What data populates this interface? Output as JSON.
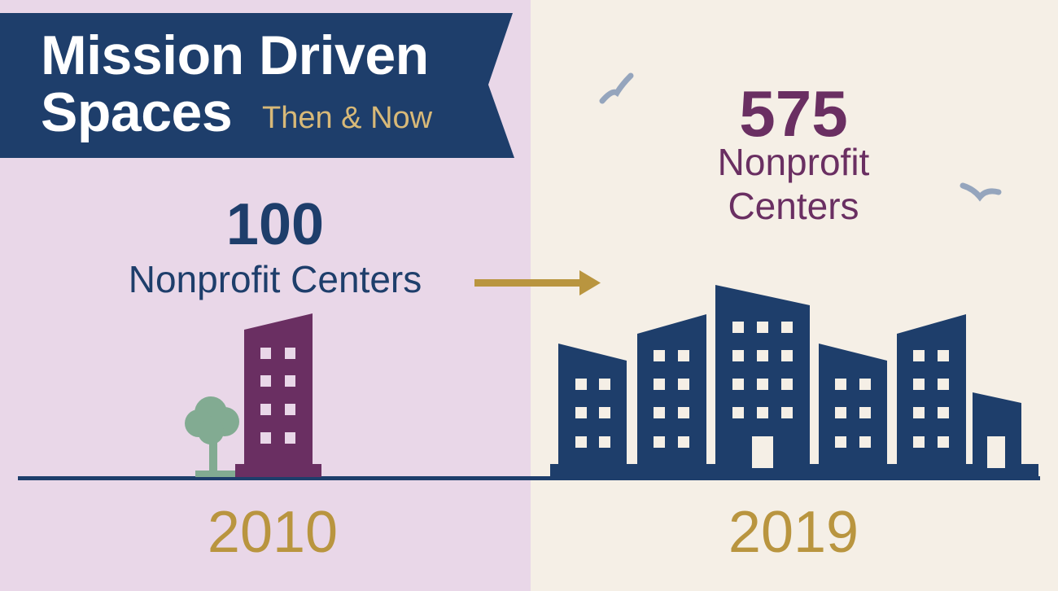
{
  "title": {
    "line1": "Mission Driven",
    "line2": "Spaces",
    "subtitle": "Then & Now"
  },
  "then": {
    "count": "100",
    "label": "Nonprofit Centers",
    "year": "2010"
  },
  "now": {
    "count": "575",
    "label_line1": "Nonprofit",
    "label_line2": "Centers",
    "year": "2019"
  },
  "colors": {
    "left_background": "#e9d7e8",
    "right_background": "#f5efe6",
    "navy": "#1e3e6b",
    "plum": "#6a2f62",
    "gold": "#b9953f",
    "tree_green": "#82ab92",
    "bird_gray": "#95a5bd"
  },
  "icons": [
    "tree-icon",
    "building-icon",
    "city-skyline-icon",
    "arrow-right-icon",
    "bird-icon"
  ]
}
